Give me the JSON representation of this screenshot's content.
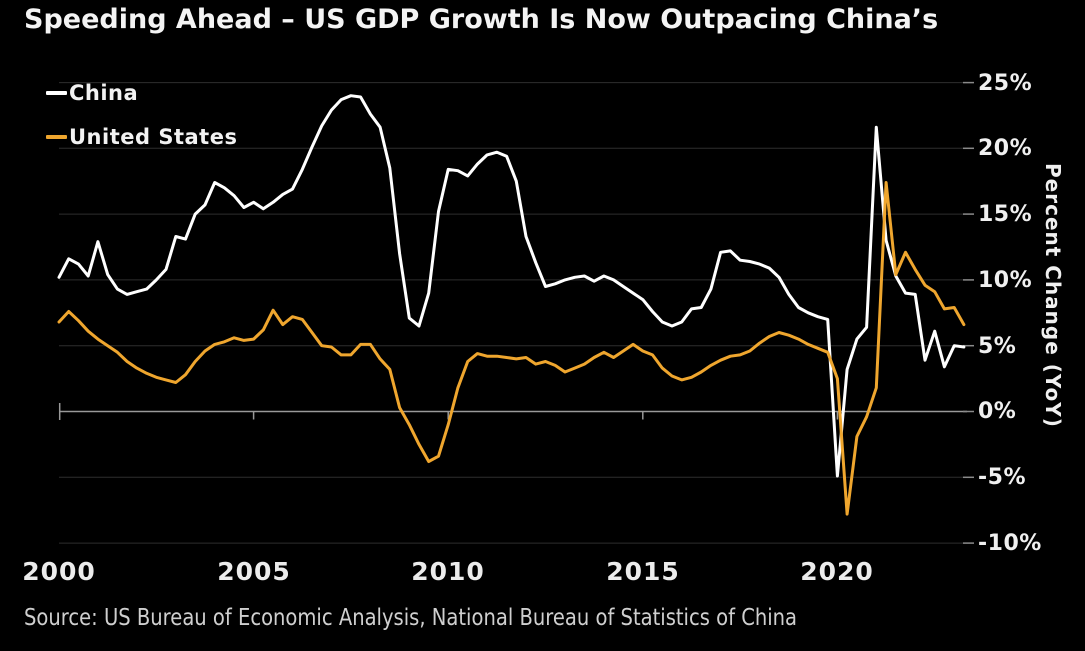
{
  "title": "Speeding Ahead – US GDP Growth Is Now Outpacing China’s",
  "source": "Source: US Bureau of Economic Analysis, National Bureau of Statistics of China",
  "legend": [
    {
      "label": "China",
      "color": "#ffffff"
    },
    {
      "label": "United States",
      "color": "#efa62e"
    }
  ],
  "axes": {
    "y_title": "Percent Change (YoY)",
    "y_ticks": [
      "25%",
      "20%",
      "15%",
      "10%",
      "5%",
      "0%",
      "-5%",
      "-10%"
    ],
    "x_ticks": [
      "2000",
      "2005",
      "2010",
      "2015",
      "2020"
    ]
  },
  "colors": {
    "background": "#000000",
    "title_text": "#f4f4f4",
    "tick_text": "#ececec",
    "source_text": "#cfcfcf",
    "gridline": "#2e2e2e",
    "zero_axis": "#999999",
    "china_line": "#ffffff",
    "us_line": "#efa62e"
  },
  "chart_data": {
    "type": "line",
    "title": "Speeding Ahead – US GDP Growth Is Now Outpacing China’s",
    "xlabel": "",
    "ylabel": "Percent Change (YoY)",
    "x_start": 2000.0,
    "x_step": 0.25,
    "xlim": [
      2000.0,
      2023.25
    ],
    "ylim": [
      -10,
      25
    ],
    "y_tick_values": [
      25,
      20,
      15,
      10,
      5,
      0,
      -5,
      -10
    ],
    "x_tick_values": [
      2000,
      2005,
      2010,
      2015,
      2020
    ],
    "grid": true,
    "legend_position": "top-left",
    "frequency": "quarterly",
    "series": [
      {
        "name": "China",
        "color": "#ffffff",
        "values": [
          10.2,
          11.6,
          11.2,
          10.3,
          12.9,
          10.4,
          9.3,
          8.9,
          9.1,
          9.3,
          10.0,
          10.8,
          13.3,
          13.1,
          15.0,
          15.7,
          17.4,
          17.0,
          16.4,
          15.5,
          15.9,
          15.4,
          15.9,
          16.5,
          16.9,
          18.4,
          20.1,
          21.7,
          22.9,
          23.7,
          24.0,
          23.9,
          22.6,
          21.6,
          18.5,
          12.0,
          7.1,
          6.5,
          9.0,
          15.2,
          18.4,
          18.3,
          17.9,
          18.8,
          19.5,
          19.7,
          19.4,
          17.5,
          13.3,
          11.3,
          9.5,
          9.7,
          10.0,
          10.2,
          10.3,
          9.9,
          10.3,
          10.0,
          9.5,
          9.0,
          8.5,
          7.6,
          6.8,
          6.5,
          6.8,
          7.8,
          7.9,
          9.3,
          12.1,
          12.2,
          11.5,
          11.4,
          11.2,
          10.9,
          10.2,
          8.9,
          7.9,
          7.5,
          7.2,
          7.0,
          -4.9,
          3.2,
          5.5,
          6.4,
          21.6,
          13.0,
          10.3,
          9.0,
          8.9,
          3.9,
          6.1,
          3.4,
          5.0,
          4.9
        ]
      },
      {
        "name": "United States",
        "color": "#efa62e",
        "values": [
          6.8,
          7.6,
          6.9,
          6.1,
          5.5,
          5.0,
          4.5,
          3.8,
          3.3,
          2.9,
          2.6,
          2.4,
          2.2,
          2.8,
          3.8,
          4.6,
          5.1,
          5.3,
          5.6,
          5.4,
          5.5,
          6.2,
          7.7,
          6.6,
          7.2,
          7.0,
          6.0,
          5.0,
          4.9,
          4.3,
          4.3,
          5.1,
          5.1,
          4.0,
          3.2,
          0.3,
          -1.0,
          -2.5,
          -3.8,
          -3.4,
          -1.0,
          1.8,
          3.8,
          4.4,
          4.2,
          4.2,
          4.1,
          4.0,
          4.1,
          3.6,
          3.8,
          3.5,
          3.0,
          3.3,
          3.6,
          4.1,
          4.5,
          4.1,
          4.6,
          5.1,
          4.6,
          4.3,
          3.3,
          2.7,
          2.4,
          2.6,
          3.0,
          3.5,
          3.9,
          4.2,
          4.3,
          4.6,
          5.2,
          5.7,
          6.0,
          5.8,
          5.5,
          5.1,
          4.8,
          4.5,
          2.5,
          -7.8,
          -1.9,
          -0.4,
          1.8,
          17.4,
          10.4,
          12.1,
          10.8,
          9.6,
          9.1,
          7.8,
          7.9,
          6.6
        ]
      }
    ]
  }
}
